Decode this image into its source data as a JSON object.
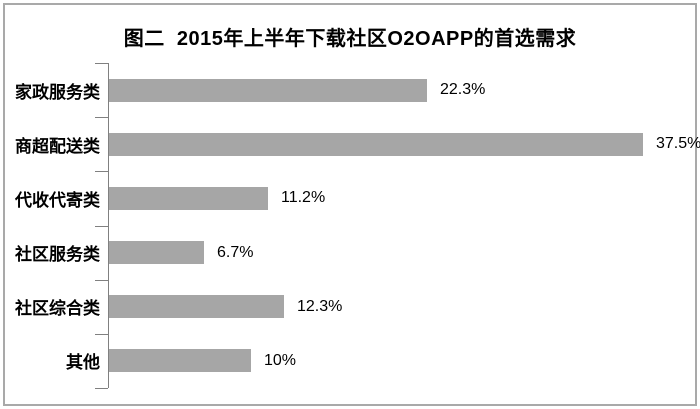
{
  "page": {
    "background_color": "#ffffff",
    "frame_border_color": "#a9a9a9"
  },
  "chart_data": {
    "type": "bar",
    "orientation": "horizontal",
    "title": "图二  2015年上半年下载社区O2OAPP的首选需求",
    "categories": [
      "家政服务类",
      "商超配送类",
      "代收代寄类",
      "社区服务类",
      "社区综合类",
      "其他"
    ],
    "values": [
      22.3,
      37.5,
      11.2,
      6.7,
      12.3,
      10
    ],
    "value_labels": [
      "22.3%",
      "37.5%",
      "11.2%",
      "6.7%",
      "12.3%",
      "10%"
    ],
    "xlabel": "",
    "ylabel": "",
    "xlim": [
      0,
      40
    ],
    "grid": false,
    "legend": false,
    "bar_color": "#a6a6a6",
    "axis_color": "#808080",
    "text_color": "#000000"
  }
}
